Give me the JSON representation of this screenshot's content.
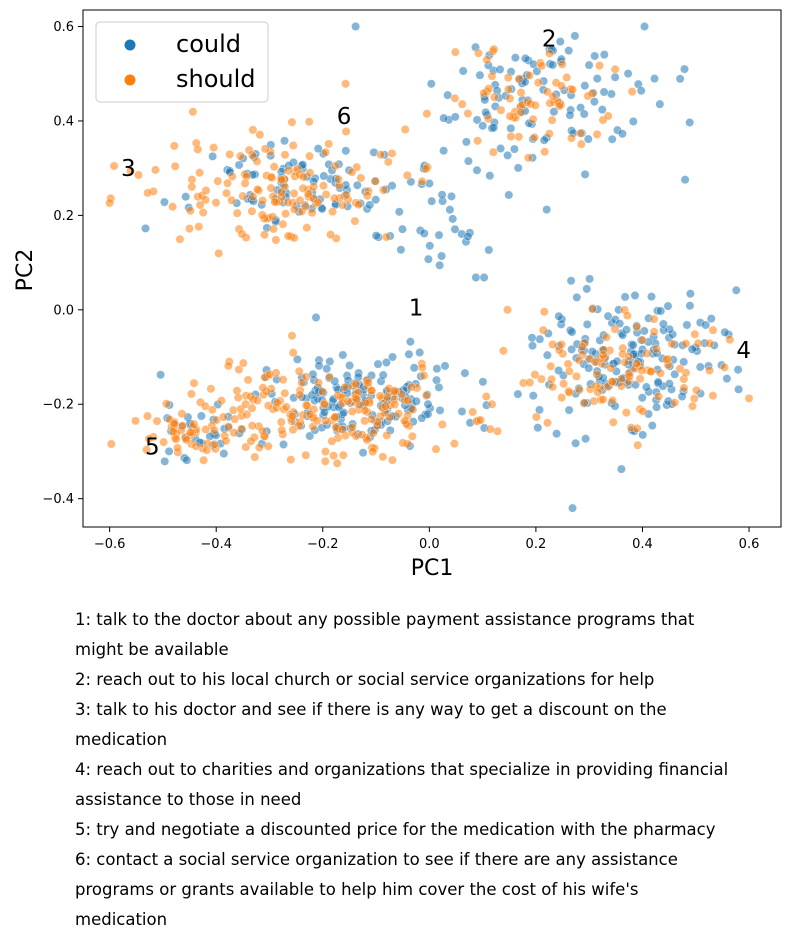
{
  "chart_data": {
    "type": "scatter",
    "xlabel": "PC1",
    "ylabel": "PC2",
    "xlim": [
      -0.65,
      0.66
    ],
    "ylim": [
      -0.46,
      0.635
    ],
    "xticks": [
      -0.6,
      -0.4,
      -0.2,
      0.0,
      0.2,
      0.4,
      0.6
    ],
    "xtick_labels": [
      "−0.6",
      "−0.4",
      "−0.2",
      "0.0",
      "0.2",
      "0.4",
      "0.6"
    ],
    "yticks": [
      -0.4,
      -0.2,
      0.0,
      0.2,
      0.4,
      0.6
    ],
    "ytick_labels": [
      "−0.4",
      "−0.2",
      "0.0",
      "0.2",
      "0.4",
      "0.6"
    ],
    "grid": false,
    "legend_position": "top-left",
    "series": [
      {
        "name": "could",
        "color": "#1f77b4",
        "clusters": [
          {
            "cx": 0.22,
            "cy": 0.44,
            "sx": 0.11,
            "sy": 0.08,
            "n": 110
          },
          {
            "cx": -0.24,
            "cy": 0.26,
            "sx": 0.1,
            "sy": 0.05,
            "n": 90
          },
          {
            "cx": 0.38,
            "cy": -0.1,
            "sx": 0.09,
            "sy": 0.07,
            "n": 170
          },
          {
            "cx": -0.12,
            "cy": -0.19,
            "sx": 0.11,
            "sy": 0.05,
            "n": 160
          },
          {
            "cx": -0.42,
            "cy": -0.26,
            "sx": 0.06,
            "sy": 0.03,
            "n": 30
          },
          {
            "cx": 0.02,
            "cy": 0.22,
            "sx": 0.06,
            "sy": 0.08,
            "n": 30
          }
        ]
      },
      {
        "name": "should",
        "color": "#ff7f0e",
        "clusters": [
          {
            "cx": 0.2,
            "cy": 0.44,
            "sx": 0.08,
            "sy": 0.06,
            "n": 70
          },
          {
            "cx": -0.28,
            "cy": 0.26,
            "sx": 0.12,
            "sy": 0.06,
            "n": 150
          },
          {
            "cx": 0.34,
            "cy": -0.13,
            "sx": 0.1,
            "sy": 0.06,
            "n": 110
          },
          {
            "cx": -0.2,
            "cy": -0.22,
            "sx": 0.14,
            "sy": 0.05,
            "n": 200
          },
          {
            "cx": -0.46,
            "cy": -0.25,
            "sx": 0.05,
            "sy": 0.03,
            "n": 40
          }
        ]
      }
    ],
    "annotations": [
      {
        "text": "1",
        "x": -0.025,
        "y": 0.005
      },
      {
        "text": "2",
        "x": 0.225,
        "y": 0.575
      },
      {
        "text": "3",
        "x": -0.565,
        "y": 0.3
      },
      {
        "text": "4",
        "x": 0.59,
        "y": -0.085
      },
      {
        "text": "5",
        "x": -0.52,
        "y": -0.29
      },
      {
        "text": "6",
        "x": -0.16,
        "y": 0.41
      }
    ]
  },
  "captions": [
    "1: talk to the doctor about any possible payment assistance programs that might be available",
    "2: reach out to his local church or social service organizations for help",
    "3: talk to his doctor and see if there is any way to get a discount on the medication",
    "4: reach out to charities and organizations that specialize in providing financial assistance to those in need",
    "5: try and negotiate a discounted price for the medication with the pharmacy",
    "6: contact a social service organization to see if there are any assistance programs or grants available to help him cover the cost of his wife's medication"
  ]
}
